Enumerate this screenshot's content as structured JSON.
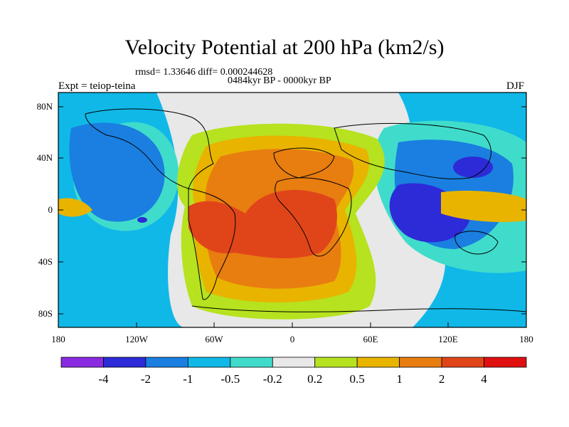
{
  "title": "Velocity Potential at 200 hPa (km2/s)",
  "stats": "rmsd= 1.33646 diff= 0.000244628",
  "period": "0484kyr BP - 0000kyr BP",
  "experiment": "Expt = teiop-teina",
  "season": "DJF",
  "axes": {
    "lon_ticks": [
      "180",
      "120W",
      "60W",
      "0",
      "60E",
      "120E",
      "180"
    ],
    "lat_ticks": [
      "80N",
      "40N",
      "0",
      "40S",
      "80S"
    ]
  },
  "colorbar": {
    "labels": [
      "-4",
      "-2",
      "-1",
      "-0.5",
      "-0.2",
      "0.2",
      "0.5",
      "1",
      "2",
      "4"
    ],
    "colors": [
      "#8a2be2",
      "#2d2ad8",
      "#1a7fe0",
      "#10b8e8",
      "#40dccb",
      "#e8e8e8",
      "#b6e21f",
      "#e8b400",
      "#e87d10",
      "#e0451a",
      "#e01010"
    ]
  }
}
